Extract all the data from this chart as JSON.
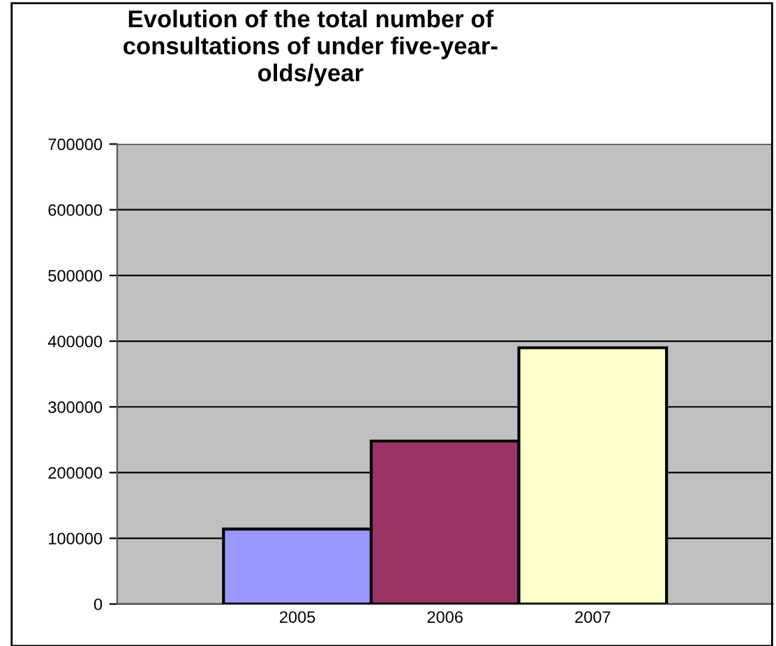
{
  "chart_data": {
    "type": "bar",
    "title": "Evolution of the total number of\nconsultations of under five-year-\nolds/year",
    "categories": [
      "2005",
      "2006",
      "2007"
    ],
    "values": [
      114000,
      248000,
      390000
    ],
    "colors": [
      "#9999ff",
      "#993366",
      "#ffffcc"
    ],
    "ylim": [
      0,
      700000
    ],
    "yticks": [
      0,
      100000,
      200000,
      300000,
      400000,
      500000,
      600000,
      700000
    ],
    "grid": "y",
    "legend": false
  }
}
